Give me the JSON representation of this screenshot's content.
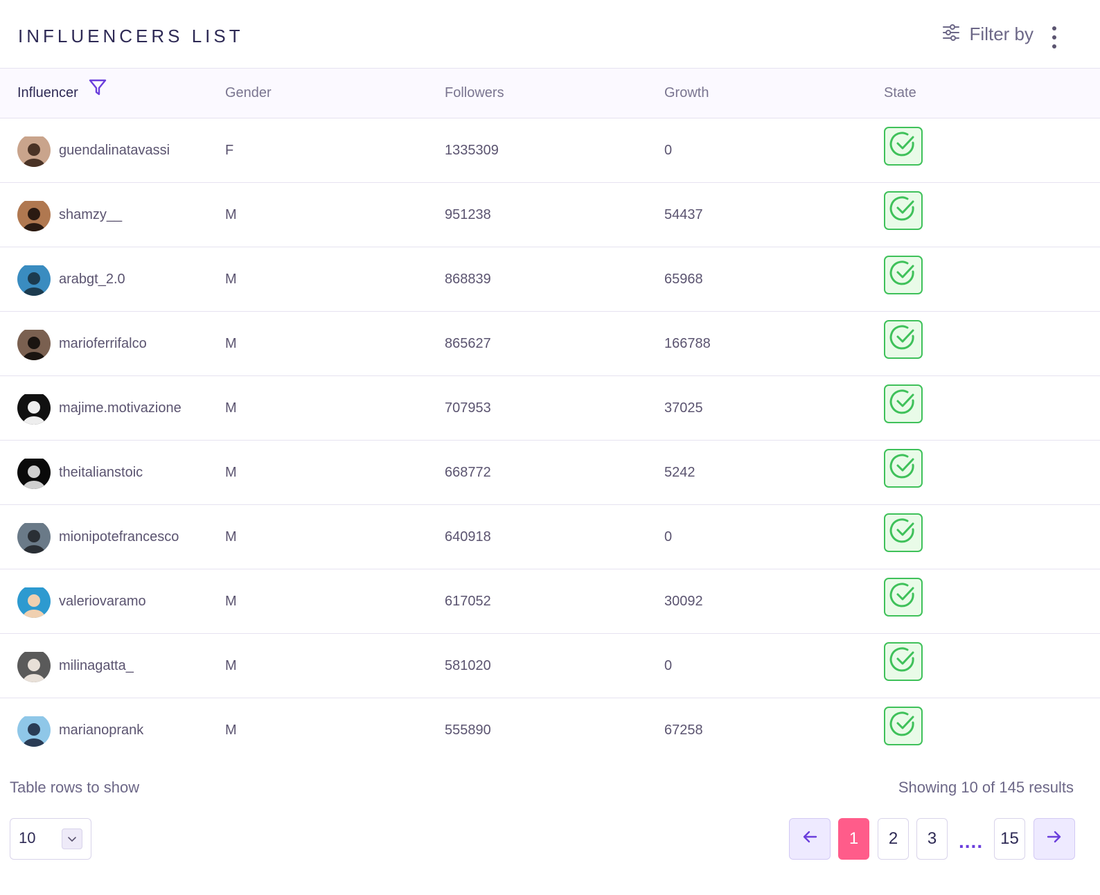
{
  "header": {
    "title": "INFLUENCERS LIST",
    "filter_label": "Filter by",
    "filter_icon": "sliders-icon",
    "more_icon": "kebab-menu-icon"
  },
  "table": {
    "columns": [
      "Influencer",
      "Gender",
      "Followers",
      "Growth",
      "State"
    ],
    "rows": [
      {
        "name": "guendalinatavassi",
        "gender": "F",
        "followers": "1335309",
        "growth": "0",
        "state": "checked"
      },
      {
        "name": "shamzy__",
        "gender": "M",
        "followers": "951238",
        "growth": "54437",
        "state": "checked"
      },
      {
        "name": "arabgt_2.0",
        "gender": "M",
        "followers": "868839",
        "growth": "65968",
        "state": "checked"
      },
      {
        "name": "marioferrifalco",
        "gender": "M",
        "followers": "865627",
        "growth": "166788",
        "state": "checked"
      },
      {
        "name": "majime.motivazione",
        "gender": "M",
        "followers": "707953",
        "growth": "37025",
        "state": "checked"
      },
      {
        "name": "theitalianstoic",
        "gender": "M",
        "followers": "668772",
        "growth": "5242",
        "state": "checked"
      },
      {
        "name": "mionipotefrancesco",
        "gender": "M",
        "followers": "640918",
        "growth": "0",
        "state": "checked"
      },
      {
        "name": "valeriovaramo",
        "gender": "M",
        "followers": "617052",
        "growth": "30092",
        "state": "checked"
      },
      {
        "name": "milinagatta_",
        "gender": "M",
        "followers": "581020",
        "growth": "0",
        "state": "checked"
      },
      {
        "name": "marianoprank",
        "gender": "M",
        "followers": "555890",
        "growth": "67258",
        "state": "checked"
      }
    ]
  },
  "footer": {
    "rows_label": "Table rows to show",
    "rows_value": "10",
    "results_label": "Showing 10 of 145 results",
    "pages": [
      "1",
      "2",
      "3",
      "15"
    ],
    "ellipsis": "....",
    "active_page": "1"
  },
  "colors": {
    "accent": "#6b3fdc",
    "active_page": "#ff5c8a",
    "state_green": "#3fc15a",
    "title": "#2e2a55"
  }
}
